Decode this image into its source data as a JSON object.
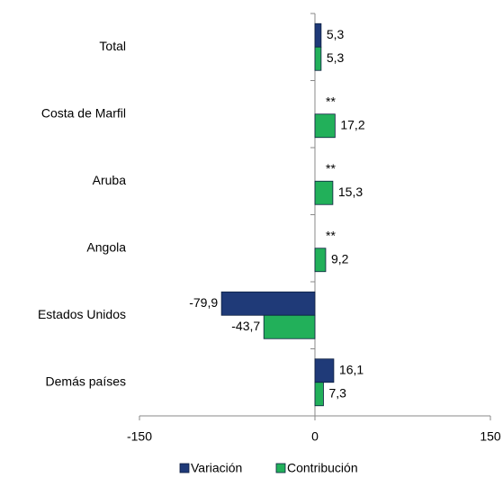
{
  "chart_data": {
    "type": "bar",
    "orientation": "horizontal",
    "categories": [
      "Total",
      "Costa de Marfil",
      "Aruba",
      "Angola",
      "Estados Unidos",
      "Demás países"
    ],
    "series": [
      {
        "name": "Variación",
        "color": "#1f3a78",
        "values": [
          5.3,
          null,
          null,
          null,
          -79.9,
          16.1
        ],
        "value_labels": [
          "5,3",
          "**",
          "**",
          "**",
          "-79,9",
          "16,1"
        ]
      },
      {
        "name": "Contribución",
        "color": "#22b05a",
        "values": [
          5.3,
          17.2,
          15.3,
          9.2,
          -43.7,
          7.3
        ],
        "value_labels": [
          "5,3",
          "17,2",
          "15,3",
          "9,2",
          "-43,7",
          "7,3"
        ]
      }
    ],
    "xlim": [
      -150,
      150
    ],
    "xticks": [
      -150,
      0,
      150
    ],
    "grid": false,
    "legend": "bottom"
  }
}
